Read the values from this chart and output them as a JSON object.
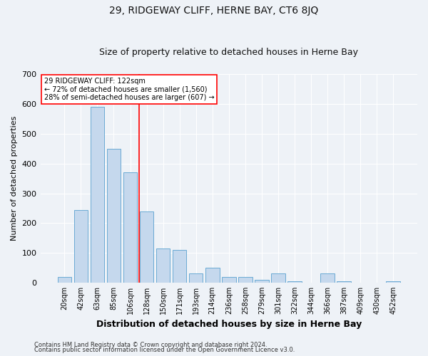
{
  "title": "29, RIDGEWAY CLIFF, HERNE BAY, CT6 8JQ",
  "subtitle": "Size of property relative to detached houses in Herne Bay",
  "xlabel": "Distribution of detached houses by size in Herne Bay",
  "ylabel": "Number of detached properties",
  "footnote1": "Contains HM Land Registry data © Crown copyright and database right 2024.",
  "footnote2": "Contains public sector information licensed under the Open Government Licence v3.0.",
  "annotation_line1": "29 RIDGEWAY CLIFF: 122sqm",
  "annotation_line2": "← 72% of detached houses are smaller (1,560)",
  "annotation_line3": "28% of semi-detached houses are larger (607) →",
  "bar_color": "#c5d8ed",
  "bar_edge_color": "#6aaad4",
  "red_line_x": 4.55,
  "categories": [
    "20sqm",
    "42sqm",
    "63sqm",
    "85sqm",
    "106sqm",
    "128sqm",
    "150sqm",
    "171sqm",
    "193sqm",
    "214sqm",
    "236sqm",
    "258sqm",
    "279sqm",
    "301sqm",
    "322sqm",
    "344sqm",
    "366sqm",
    "387sqm",
    "409sqm",
    "430sqm",
    "452sqm"
  ],
  "values": [
    20,
    245,
    590,
    450,
    370,
    240,
    115,
    110,
    30,
    50,
    20,
    20,
    10,
    30,
    5,
    1,
    30,
    5,
    1,
    1,
    5
  ],
  "ylim": [
    0,
    700
  ],
  "yticks": [
    0,
    100,
    200,
    300,
    400,
    500,
    600,
    700
  ],
  "background_color": "#eef2f7",
  "grid_color": "#ffffff",
  "title_fontsize": 10,
  "subtitle_fontsize": 9,
  "ylabel_fontsize": 8,
  "xlabel_fontsize": 9,
  "tick_fontsize": 7,
  "annot_fontsize": 7,
  "footnote_fontsize": 6
}
